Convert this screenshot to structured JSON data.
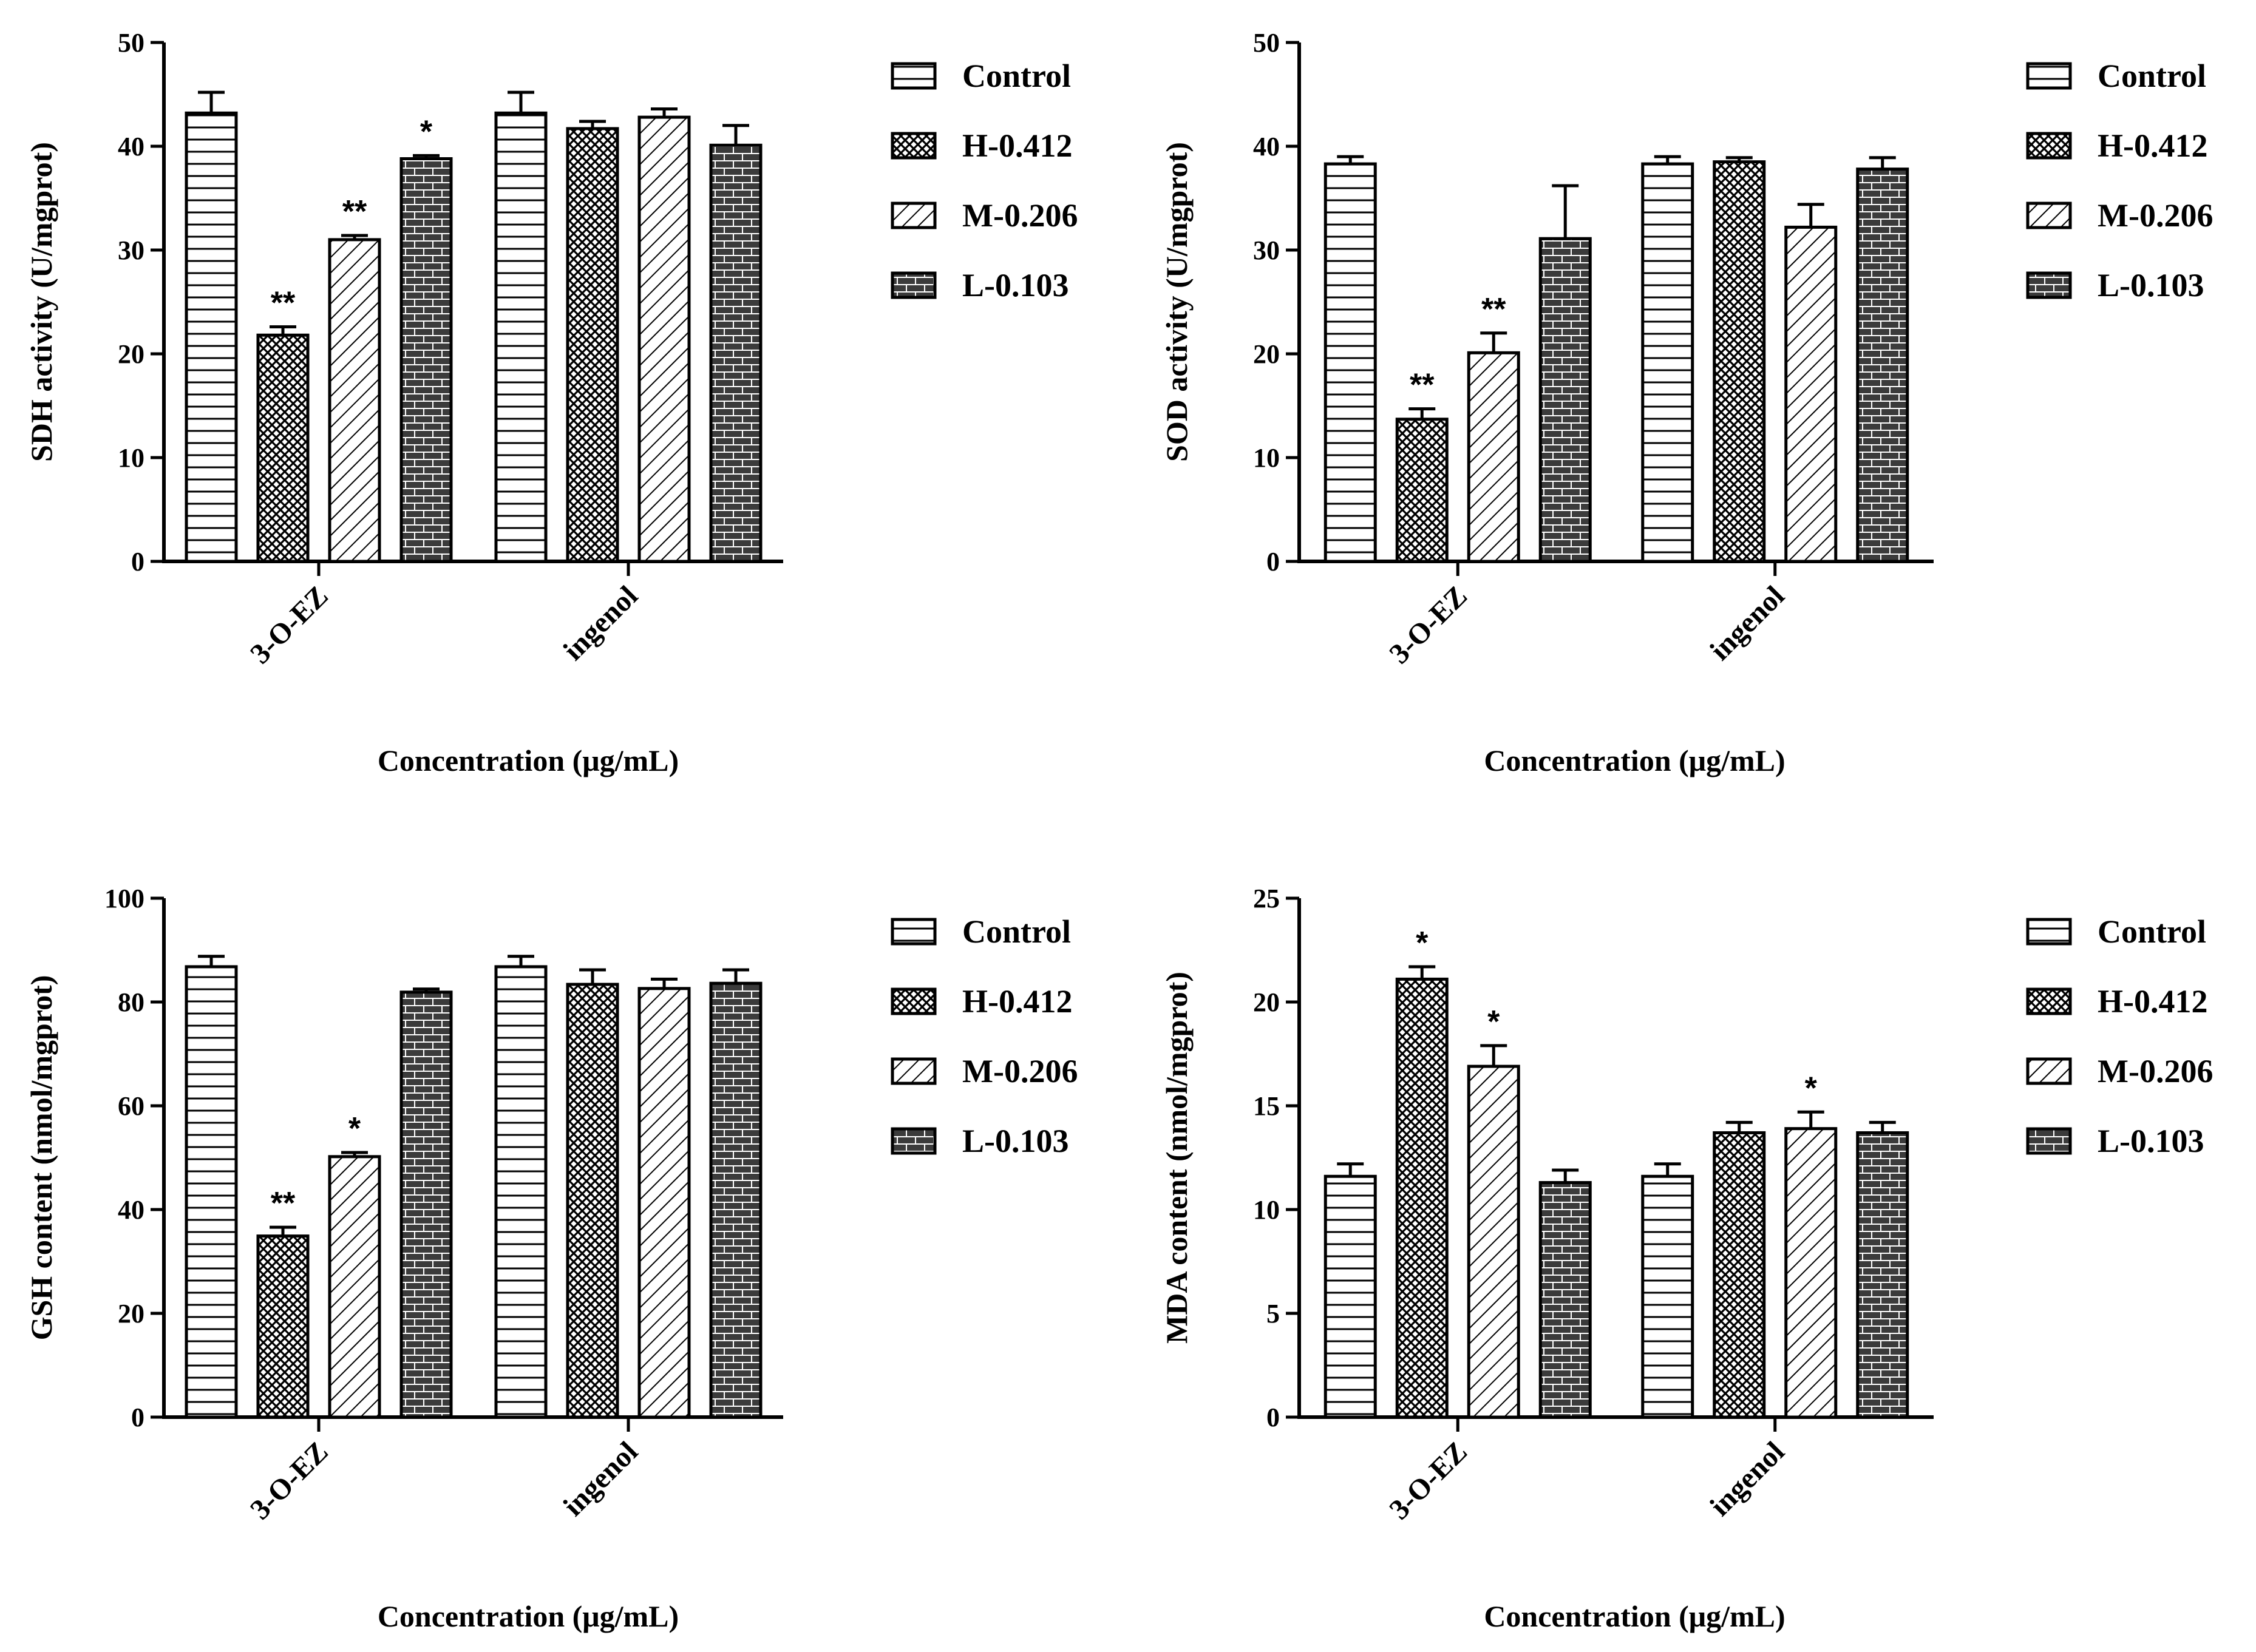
{
  "chart_data": [
    {
      "type": "bar",
      "title": "",
      "xlabel": "Concentration (μg/mL)",
      "ylabel": "SDH activity (U/mgprot)",
      "ylim": [
        0,
        50
      ],
      "yticks": [
        "0",
        "10",
        "20",
        "30",
        "40",
        "50"
      ],
      "categories": [
        "3-O-EZ",
        "ingenol"
      ],
      "legend_position": "right",
      "series": [
        {
          "name": "Control",
          "pattern": "horizontal-lines",
          "values": [
            43.2,
            43.2
          ],
          "errors": [
            2.0,
            2.0
          ],
          "annotations": [
            "",
            ""
          ]
        },
        {
          "name": "H-0.412",
          "pattern": "crosshatch",
          "values": [
            21.8,
            41.7
          ],
          "errors": [
            0.8,
            0.7
          ],
          "annotations": [
            "**",
            ""
          ]
        },
        {
          "name": "M-0.206",
          "pattern": "diagonal-lines",
          "values": [
            31.0,
            42.8
          ],
          "errors": [
            0.4,
            0.8
          ],
          "annotations": [
            "**",
            ""
          ]
        },
        {
          "name": "L-0.103",
          "pattern": "brick",
          "values": [
            38.8,
            40.1
          ],
          "errors": [
            0.3,
            1.9
          ],
          "annotations": [
            "*",
            ""
          ]
        }
      ]
    },
    {
      "type": "bar",
      "title": "",
      "xlabel": "Concentration (μg/mL)",
      "ylabel": "SOD activity (U/mgprot)",
      "ylim": [
        0,
        50
      ],
      "yticks": [
        "0",
        "10",
        "20",
        "30",
        "40",
        "50"
      ],
      "categories": [
        "3-O-EZ",
        "ingenol"
      ],
      "legend_position": "right",
      "series": [
        {
          "name": "Control",
          "pattern": "horizontal-lines",
          "values": [
            38.3,
            38.3
          ],
          "errors": [
            0.7,
            0.7
          ],
          "annotations": [
            "",
            ""
          ]
        },
        {
          "name": "H-0.412",
          "pattern": "crosshatch",
          "values": [
            13.7,
            38.5
          ],
          "errors": [
            1.0,
            0.4
          ],
          "annotations": [
            "**",
            ""
          ]
        },
        {
          "name": "M-0.206",
          "pattern": "diagonal-lines",
          "values": [
            20.1,
            32.2
          ],
          "errors": [
            1.9,
            2.2
          ],
          "annotations": [
            "**",
            ""
          ]
        },
        {
          "name": "L-0.103",
          "pattern": "brick",
          "values": [
            31.1,
            37.8
          ],
          "errors": [
            5.1,
            1.1
          ],
          "annotations": [
            "",
            ""
          ]
        }
      ]
    },
    {
      "type": "bar",
      "title": "",
      "xlabel": "Concentration (μg/mL)",
      "ylabel": "GSH content (nmol/mgprot)",
      "ylim": [
        0,
        100
      ],
      "yticks": [
        "0",
        "20",
        "40",
        "60",
        "80",
        "100"
      ],
      "categories": [
        "3-O-EZ",
        "ingenol"
      ],
      "legend_position": "right",
      "series": [
        {
          "name": "Control",
          "pattern": "horizontal-lines",
          "values": [
            86.8,
            86.8
          ],
          "errors": [
            2.0,
            2.0
          ],
          "annotations": [
            "",
            ""
          ]
        },
        {
          "name": "H-0.412",
          "pattern": "crosshatch",
          "values": [
            34.9,
            83.4
          ],
          "errors": [
            1.7,
            2.8
          ],
          "annotations": [
            "**",
            ""
          ]
        },
        {
          "name": "M-0.206",
          "pattern": "diagonal-lines",
          "values": [
            50.2,
            82.6
          ],
          "errors": [
            0.8,
            1.8
          ],
          "annotations": [
            "*",
            ""
          ]
        },
        {
          "name": "L-0.103",
          "pattern": "brick",
          "values": [
            81.9,
            83.6
          ],
          "errors": [
            0.6,
            2.6
          ],
          "annotations": [
            "",
            ""
          ]
        }
      ]
    },
    {
      "type": "bar",
      "title": "",
      "xlabel": "Concentration (μg/mL)",
      "ylabel": "MDA content (nmol/mgprot)",
      "ylim": [
        0,
        25
      ],
      "yticks": [
        "0",
        "5",
        "10",
        "15",
        "20",
        "25"
      ],
      "categories": [
        "3-O-EZ",
        "ingenol"
      ],
      "legend_position": "right",
      "series": [
        {
          "name": "Control",
          "pattern": "horizontal-lines",
          "values": [
            11.6,
            11.6
          ],
          "errors": [
            0.6,
            0.6
          ],
          "annotations": [
            "",
            ""
          ]
        },
        {
          "name": "H-0.412",
          "pattern": "crosshatch",
          "values": [
            21.1,
            13.7
          ],
          "errors": [
            0.6,
            0.5
          ],
          "annotations": [
            "*",
            ""
          ]
        },
        {
          "name": "M-0.206",
          "pattern": "diagonal-lines",
          "values": [
            16.9,
            13.9
          ],
          "errors": [
            1.0,
            0.8
          ],
          "annotations": [
            "*",
            "*"
          ]
        },
        {
          "name": "L-0.103",
          "pattern": "brick",
          "values": [
            11.3,
            13.7
          ],
          "errors": [
            0.6,
            0.5
          ],
          "annotations": [
            "",
            ""
          ]
        }
      ]
    }
  ]
}
